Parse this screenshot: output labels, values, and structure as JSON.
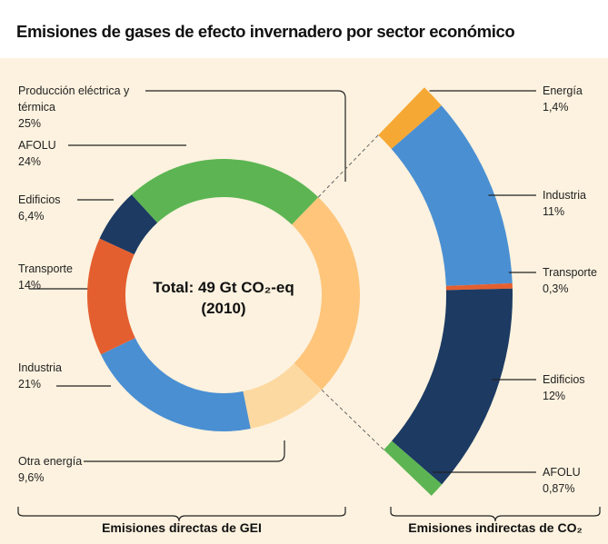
{
  "title": "Emisiones de gases de efecto invernadero por sector económico",
  "chart_data": [
    {
      "type": "donut",
      "series_label": "Emisiones directas de GEI",
      "center_label": "Total: 49 Gt CO₂-eq (2010)",
      "categories": [
        "Producción eléctrica y térmica",
        "Otra energía",
        "Industria",
        "Transporte",
        "Edificios",
        "AFOLU"
      ],
      "values": [
        25,
        9.6,
        21,
        14,
        6.4,
        24
      ],
      "value_labels": [
        "25%",
        "9,6%",
        "21%",
        "14%",
        "6,4%",
        "24%"
      ],
      "colors": [
        "#fec57b",
        "#fdd9a2",
        "#4a8fd2",
        "#e45f30",
        "#1c3a62",
        "#5cb552"
      ]
    },
    {
      "type": "arc",
      "series_label": "Emisiones indirectas de CO₂",
      "categories": [
        "Energía",
        "Industria",
        "Transporte",
        "Edificios",
        "AFOLU"
      ],
      "values": [
        1.4,
        11,
        0.3,
        12,
        0.87
      ],
      "value_labels": [
        "1,4%",
        "11%",
        "0,3%",
        "12%",
        "0,87%"
      ],
      "colors": [
        "#f6a834",
        "#4a8fd2",
        "#e45f30",
        "#1c3a62",
        "#5cb552"
      ]
    }
  ]
}
